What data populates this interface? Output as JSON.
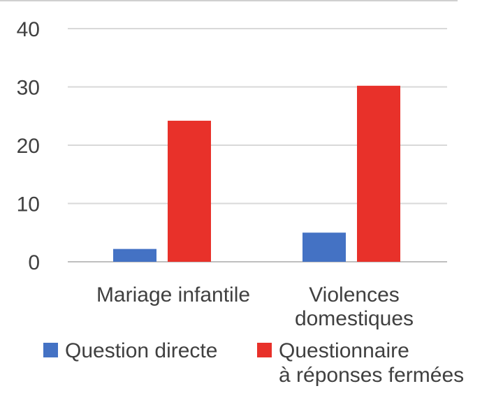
{
  "chart_data": {
    "type": "bar",
    "categories": [
      [
        "Mariage infantile"
      ],
      [
        "Violences",
        "domestiques"
      ]
    ],
    "series": [
      {
        "name": "Question directe",
        "color": "#4472c4",
        "values": [
          2.2,
          5.0
        ]
      },
      {
        "name": [
          "Questionnaire",
          "à réponses fermées"
        ],
        "color": "#e8312a",
        "values": [
          24.2,
          30.2
        ]
      }
    ],
    "yticks": [
      "0",
      "10",
      "20",
      "30",
      "40"
    ],
    "ylim": [
      0,
      40
    ],
    "grid": true,
    "legend_position": "bottom",
    "title": "",
    "xlabel": "",
    "ylabel": ""
  }
}
